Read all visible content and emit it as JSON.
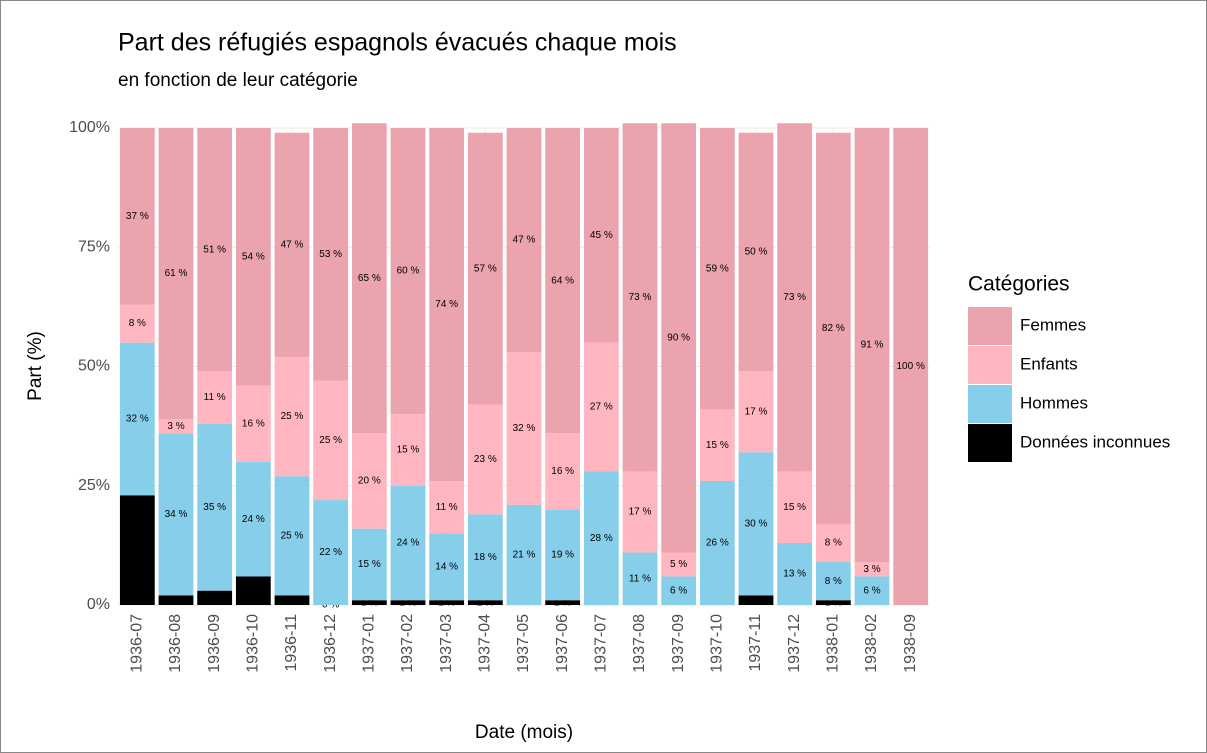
{
  "chart_data": {
    "type": "stacked_bar",
    "title": "Part des réfugiés espagnols évacués chaque mois",
    "subtitle": "en fonction de leur catégorie",
    "x_label": "Date (mois)",
    "y_label": "Part (%)",
    "legend_title": "Catégories",
    "legend": "right",
    "grid": true,
    "categories": [
      "1936-07",
      "1936-08",
      "1936-09",
      "1936-10",
      "1936-11",
      "1936-12",
      "1937-01",
      "1937-02",
      "1937-03",
      "1937-04",
      "1937-05",
      "1937-06",
      "1937-07",
      "1937-08",
      "1937-09",
      "1937-10",
      "1937-11",
      "1937-12",
      "1938-01",
      "1938-02",
      "1938-09"
    ],
    "ylim": [
      0,
      100
    ],
    "yticks": [
      {
        "value": 0,
        "label": "0%"
      },
      {
        "value": 25,
        "label": "25%"
      },
      {
        "value": 50,
        "label": "50%"
      },
      {
        "value": 75,
        "label": "75%"
      },
      {
        "value": 100,
        "label": "100%"
      }
    ],
    "series": [
      {
        "name": "Femmes",
        "color": "#eba3ae",
        "values": [
          37,
          61,
          51,
          54,
          47,
          53,
          65,
          60,
          74,
          57,
          47,
          64,
          45,
          73,
          90,
          59,
          50,
          73,
          82,
          91,
          100
        ],
        "value_labels": [
          "37 %",
          "61 %",
          "51 %",
          "54 %",
          "47 %",
          "53 %",
          "65 %",
          "60 %",
          "74 %",
          "57 %",
          "47 %",
          "64 %",
          "45 %",
          "73 %",
          "90 %",
          "59 %",
          "50 %",
          "73 %",
          "82 %",
          "91 %",
          "100 %"
        ]
      },
      {
        "name": "Enfants",
        "color": "#ffb6c1",
        "values": [
          8,
          3,
          11,
          16,
          25,
          25,
          20,
          15,
          11,
          23,
          32,
          16,
          27,
          17,
          5,
          15,
          17,
          15,
          8,
          3,
          null
        ],
        "value_labels": [
          "8 %",
          "3 %",
          "11 %",
          "16 %",
          "25 %",
          "25 %",
          "20 %",
          "15 %",
          "11 %",
          "23 %",
          "32 %",
          "16 %",
          "27 %",
          "17 %",
          "5 %",
          "15 %",
          "17 %",
          "15 %",
          "8 %",
          "3 %",
          null
        ]
      },
      {
        "name": "Hommes",
        "color": "#87ceeb",
        "values": [
          32,
          34,
          35,
          24,
          25,
          22,
          15,
          24,
          14,
          18,
          21,
          19,
          28,
          11,
          6,
          26,
          30,
          13,
          8,
          6,
          null
        ],
        "value_labels": [
          "32 %",
          "34 %",
          "35 %",
          "24 %",
          "25 %",
          "22 %",
          "15 %",
          "24 %",
          "14 %",
          "18 %",
          "21 %",
          "19 %",
          "28 %",
          "11 %",
          "6 %",
          "26 %",
          "30 %",
          "13 %",
          "8 %",
          "6 %",
          null
        ]
      },
      {
        "name": "Données inconnues",
        "color": "#000000",
        "values": [
          23,
          2,
          3,
          6,
          2,
          0,
          1,
          1,
          1,
          1,
          null,
          1,
          null,
          null,
          null,
          null,
          2,
          null,
          1,
          null,
          null
        ],
        "value_labels": [
          "23 %",
          "2 %",
          "3 %",
          "6 %",
          "2 %",
          "0 %",
          "1 %",
          "1 %",
          "1 %",
          "1 %",
          null,
          "1 %",
          null,
          null,
          null,
          null,
          "2 %",
          null,
          "1 %",
          null,
          null
        ]
      }
    ]
  }
}
